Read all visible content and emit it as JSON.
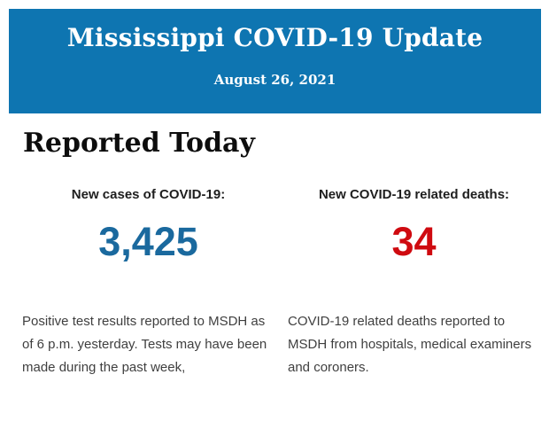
{
  "header": {
    "title": "Mississippi COVID-19 Update",
    "date": "August 26, 2021",
    "background_color": "#0e75b1",
    "text_color": "#ffffff"
  },
  "section": {
    "title": "Reported Today"
  },
  "stats": [
    {
      "label": "New cases of COVID-19:",
      "value": "3,425",
      "value_color": "#1a699e",
      "description": "Positive test results reported to MSDH as of 6 p.m. yesterday. Tests may have been made during the past week,"
    },
    {
      "label": "New COVID-19 related deaths:",
      "value": "34",
      "value_color": "#cf0a10",
      "description": "COVID-19 related deaths reported to MSDH from hospitals, medical examiners and coroners."
    }
  ]
}
